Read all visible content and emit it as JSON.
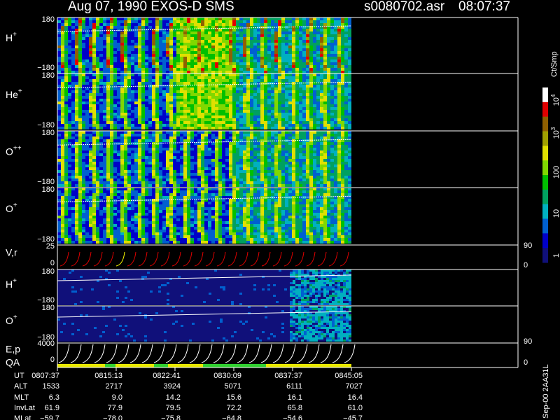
{
  "header": {
    "title": "Aug 07, 1990   EXOS-D SMS",
    "file": "s0080702.asr",
    "time": "08:07:37"
  },
  "panels": [
    {
      "label": "H",
      "sup": "+",
      "top": "180",
      "bottom": "−180"
    },
    {
      "label": "He",
      "sup": "+",
      "top": "180",
      "bottom": "−180"
    },
    {
      "label": "O",
      "sup": "++",
      "top": "180",
      "bottom": "−180"
    },
    {
      "label": "O",
      "sup": "+",
      "top": "180",
      "bottom": "−180"
    }
  ],
  "vr": {
    "label": "V,r",
    "top": "25",
    "bottom": "0",
    "right_top": "90",
    "right_bottom": "0"
  },
  "lower": [
    {
      "label": "H",
      "sup": "+",
      "top": "180",
      "bottom": "−180"
    },
    {
      "label": "O",
      "sup": "+",
      "top": "180",
      "bottom": "−180"
    }
  ],
  "ep": {
    "label": "E,p",
    "qa": "QA",
    "top": "4000",
    "bottom": "0",
    "right_top": "90",
    "right_bottom": "0"
  },
  "colorbar": {
    "title": "Ct/Smp",
    "labels": [
      {
        "base": "10",
        "sup": "4"
      },
      {
        "base": "10",
        "sup": "3"
      },
      {
        "base": "100",
        "sup": ""
      },
      {
        "base": "10",
        "sup": ""
      },
      {
        "base": "1",
        "sup": ""
      }
    ]
  },
  "table": {
    "row_labels": [
      "UT",
      "ALT",
      "MLT",
      "InvLat",
      "MLat"
    ],
    "rows": [
      [
        "0807:37",
        "0815:13",
        "0822:41",
        "0830:09",
        "0837:37",
        "0845:05"
      ],
      [
        "1533",
        "2717",
        "3924",
        "5071",
        "6111",
        "7027"
      ],
      [
        "6.3",
        "9.0",
        "14.2",
        "15.6",
        "16.1",
        "16.4"
      ],
      [
        "61.9",
        "77.9",
        "79.5",
        "72.2",
        "65.8",
        "61.0"
      ],
      [
        "−59.7",
        "−78.0",
        "−75.8",
        "−64.8",
        "−54.6",
        "−45.7"
      ]
    ]
  },
  "footer": "Sep-00  2AA31L"
}
